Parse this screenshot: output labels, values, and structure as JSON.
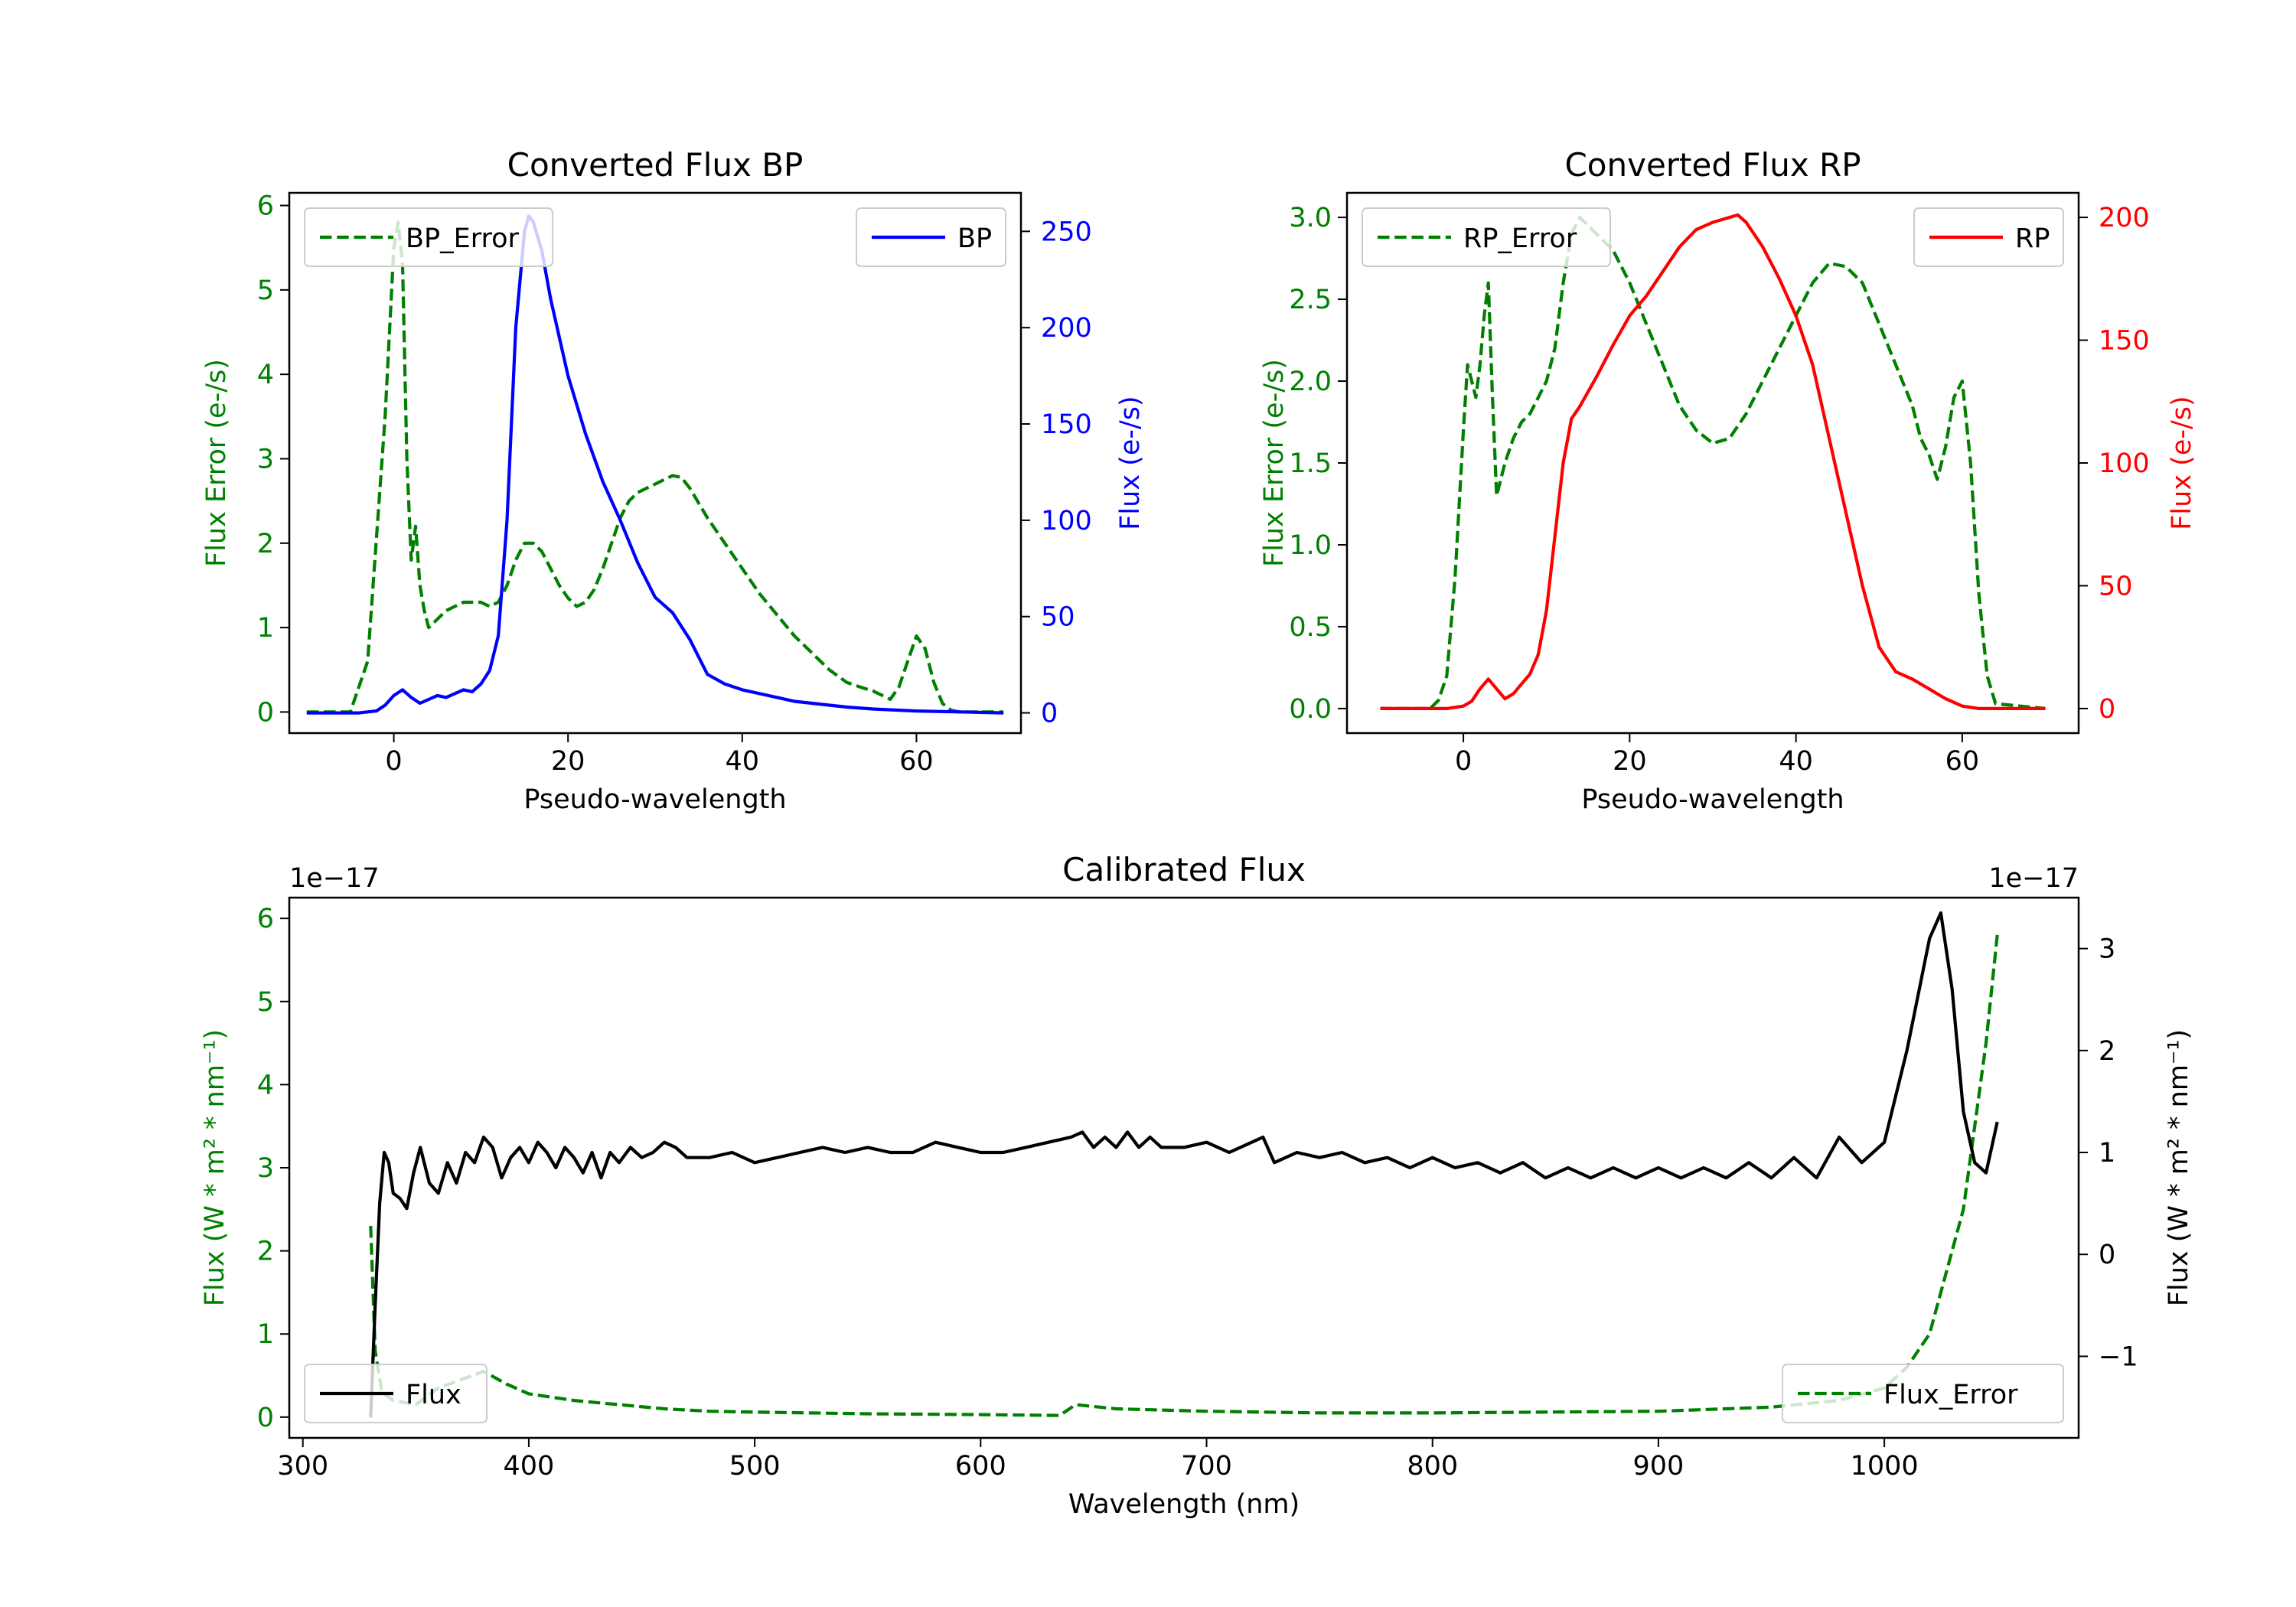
{
  "chart_data": [
    {
      "id": "bp",
      "type": "line",
      "title": "Converted Flux BP",
      "xlabel": "Pseudo-wavelength",
      "ylabel_left": "Flux Error (e-/s)",
      "ylabel_right": "Flux (e-/s)",
      "xlim": [
        -12,
        72
      ],
      "ylim_left": [
        -0.25,
        6.15
      ],
      "ylim_right": [
        -10.5,
        270
      ],
      "xticks": [
        0,
        20,
        40,
        60
      ],
      "yticks_left": [
        0,
        1,
        2,
        3,
        4,
        5,
        6
      ],
      "yticks_right": [
        0,
        50,
        100,
        150,
        200,
        250
      ],
      "legend_left": {
        "label": "BP_Error",
        "placement": "upper left"
      },
      "legend_right": {
        "label": "BP",
        "placement": "upper right"
      },
      "series": [
        {
          "name": "BP_Error",
          "axis": "left",
          "color": "#008000",
          "dash": true,
          "x": [
            -10,
            -5,
            -3,
            -1,
            0,
            0.5,
            1,
            1.5,
            2,
            2.5,
            3,
            3.5,
            4,
            5,
            6,
            7,
            8,
            9,
            10,
            11,
            12,
            13,
            14,
            15,
            16,
            17,
            18,
            19,
            20,
            21,
            22,
            23,
            24,
            25,
            26,
            27,
            28,
            30,
            32,
            33,
            34,
            36,
            38,
            40,
            42,
            44,
            46,
            48,
            50,
            52,
            54,
            55,
            56,
            57,
            58,
            59,
            60,
            61,
            62,
            63,
            64,
            65,
            70
          ],
          "values": [
            0,
            0,
            0.6,
            3.5,
            5.5,
            5.8,
            5.3,
            3.0,
            1.8,
            2.2,
            1.5,
            1.2,
            1.0,
            1.1,
            1.2,
            1.25,
            1.3,
            1.3,
            1.3,
            1.25,
            1.3,
            1.5,
            1.8,
            2.0,
            2.0,
            1.9,
            1.7,
            1.5,
            1.35,
            1.25,
            1.3,
            1.45,
            1.7,
            2.0,
            2.3,
            2.5,
            2.6,
            2.7,
            2.8,
            2.78,
            2.65,
            2.3,
            2.0,
            1.7,
            1.4,
            1.15,
            0.9,
            0.7,
            0.5,
            0.35,
            0.28,
            0.25,
            0.2,
            0.15,
            0.3,
            0.6,
            0.9,
            0.75,
            0.35,
            0.1,
            0.02,
            0,
            0
          ]
        },
        {
          "name": "BP",
          "axis": "right",
          "color": "#0000ff",
          "dash": false,
          "x": [
            -10,
            -4,
            -2,
            -1,
            0,
            1,
            2,
            3,
            4,
            5,
            6,
            7,
            8,
            9,
            10,
            11,
            12,
            13,
            14,
            15,
            15.5,
            16,
            17,
            18,
            20,
            22,
            24,
            26,
            28,
            30,
            32,
            34,
            36,
            38,
            40,
            42,
            44,
            46,
            48,
            50,
            52,
            55,
            60,
            65,
            70
          ],
          "values": [
            0,
            0,
            1,
            4,
            9,
            12,
            8,
            5,
            7,
            9,
            8,
            10,
            12,
            11,
            15,
            22,
            40,
            100,
            200,
            250,
            258,
            255,
            240,
            215,
            175,
            145,
            120,
            100,
            78,
            60,
            52,
            38,
            20,
            15,
            12,
            10,
            8,
            6,
            5,
            4,
            3,
            2,
            1,
            0.5,
            0
          ]
        }
      ]
    },
    {
      "id": "rp",
      "type": "line",
      "title": "Converted Flux RP",
      "xlabel": "Pseudo-wavelength",
      "ylabel_left": "Flux Error (e-/s)",
      "ylabel_right": "Flux (e-/s)",
      "xlim": [
        -14,
        74
      ],
      "ylim_left": [
        -0.15,
        3.15
      ],
      "ylim_right": [
        -10,
        210
      ],
      "xticks": [
        0,
        20,
        40,
        60
      ],
      "yticks_left": [
        0.0,
        0.5,
        1.0,
        1.5,
        2.0,
        2.5,
        3.0
      ],
      "yticks_right": [
        0,
        50,
        100,
        150,
        200
      ],
      "legend_left": {
        "label": "RP_Error",
        "placement": "upper left"
      },
      "legend_right": {
        "label": "RP",
        "placement": "upper right"
      },
      "series": [
        {
          "name": "RP_Error",
          "axis": "left",
          "color": "#008000",
          "dash": true,
          "x": [
            -10,
            -4,
            -3,
            -2,
            -1,
            0,
            0.5,
            1,
            1.5,
            2,
            2.5,
            3,
            3.5,
            4,
            5,
            6,
            7,
            8,
            9,
            10,
            11,
            12,
            13,
            14,
            15,
            16,
            17,
            18,
            20,
            22,
            24,
            26,
            28,
            30,
            32,
            34,
            36,
            38,
            40,
            42,
            44,
            46,
            48,
            50,
            52,
            54,
            55,
            56,
            57,
            58,
            59,
            60,
            61,
            62,
            63,
            64,
            70
          ],
          "values": [
            0,
            0,
            0.05,
            0.2,
            0.8,
            1.7,
            2.1,
            2.0,
            1.9,
            2.1,
            2.4,
            2.6,
            1.9,
            1.3,
            1.5,
            1.65,
            1.75,
            1.8,
            1.9,
            2.0,
            2.2,
            2.6,
            2.9,
            3.0,
            2.95,
            2.9,
            2.85,
            2.8,
            2.6,
            2.35,
            2.1,
            1.85,
            1.7,
            1.62,
            1.65,
            1.8,
            2.0,
            2.2,
            2.4,
            2.6,
            2.72,
            2.7,
            2.6,
            2.35,
            2.1,
            1.85,
            1.65,
            1.55,
            1.4,
            1.6,
            1.9,
            2.0,
            1.5,
            0.7,
            0.2,
            0.03,
            0
          ]
        },
        {
          "name": "RP",
          "axis": "right",
          "color": "#ff0000",
          "dash": false,
          "x": [
            -10,
            -2,
            0,
            1,
            2,
            3,
            4,
            5,
            6,
            7,
            8,
            9,
            10,
            11,
            12,
            13,
            14,
            16,
            18,
            20,
            22,
            24,
            26,
            28,
            30,
            32,
            33,
            34,
            36,
            38,
            40,
            42,
            44,
            46,
            48,
            50,
            52,
            54,
            56,
            58,
            60,
            62,
            65,
            70
          ],
          "values": [
            0,
            0,
            1,
            3,
            8,
            12,
            8,
            4,
            6,
            10,
            14,
            22,
            40,
            70,
            100,
            118,
            123,
            135,
            148,
            160,
            168,
            178,
            188,
            195,
            198,
            200,
            201,
            198,
            188,
            175,
            160,
            140,
            110,
            80,
            50,
            25,
            15,
            12,
            8,
            4,
            1,
            0,
            0,
            0
          ]
        }
      ]
    },
    {
      "id": "cal",
      "type": "line",
      "title": "Calibrated Flux",
      "xlabel": "Wavelength (nm)",
      "ylabel_left": "Flux (W * m² * nm⁻¹)",
      "ylabel_right": "Flux (W * m² * nm⁻¹)",
      "offset_left": "1e−17",
      "offset_right": "1e−17",
      "xlim": [
        294,
        1086
      ],
      "ylim_left": [
        -0.25,
        6.25
      ],
      "ylim_right": [
        -1.8,
        3.5
      ],
      "xticks": [
        300,
        400,
        500,
        600,
        700,
        800,
        900,
        1000
      ],
      "yticks_left": [
        0,
        1,
        2,
        3,
        4,
        5,
        6
      ],
      "yticks_right": [
        -1,
        0,
        1,
        2,
        3
      ],
      "legend_left": {
        "label": "Flux",
        "placement": "lower left"
      },
      "legend_right": {
        "label": "Flux_Error",
        "placement": "lower right"
      },
      "series": [
        {
          "name": "Flux_Error",
          "axis": "left",
          "color": "#008000",
          "dash": true,
          "x": [
            330,
            332,
            335,
            340,
            350,
            360,
            370,
            380,
            390,
            400,
            420,
            440,
            460,
            480,
            500,
            550,
            600,
            635,
            642,
            660,
            700,
            750,
            800,
            850,
            900,
            950,
            980,
            1000,
            1010,
            1020,
            1025,
            1030,
            1035,
            1040,
            1045,
            1050
          ],
          "values": [
            2.3,
            0.8,
            0.3,
            0.2,
            0.15,
            0.35,
            0.45,
            0.55,
            0.4,
            0.28,
            0.2,
            0.15,
            0.1,
            0.07,
            0.06,
            0.04,
            0.03,
            0.02,
            0.15,
            0.1,
            0.07,
            0.05,
            0.05,
            0.06,
            0.07,
            0.12,
            0.2,
            0.35,
            0.6,
            1.0,
            1.5,
            2.0,
            2.5,
            3.5,
            4.5,
            5.8
          ]
        },
        {
          "name": "Flux",
          "axis": "right",
          "color": "#000000",
          "dash": false,
          "x": [
            330,
            332,
            334,
            336,
            338,
            340,
            343,
            346,
            349,
            352,
            356,
            360,
            364,
            368,
            372,
            376,
            380,
            384,
            388,
            392,
            396,
            400,
            404,
            408,
            412,
            416,
            420,
            424,
            428,
            432,
            436,
            440,
            445,
            450,
            455,
            460,
            465,
            470,
            480,
            490,
            500,
            510,
            520,
            530,
            540,
            550,
            560,
            570,
            580,
            590,
            600,
            610,
            620,
            630,
            640,
            645,
            650,
            655,
            660,
            665,
            670,
            675,
            680,
            690,
            700,
            710,
            720,
            725,
            730,
            740,
            750,
            760,
            770,
            780,
            790,
            800,
            810,
            820,
            830,
            840,
            850,
            860,
            870,
            880,
            890,
            900,
            910,
            920,
            930,
            940,
            950,
            960,
            970,
            980,
            990,
            1000,
            1010,
            1020,
            1025,
            1030,
            1035,
            1040,
            1045,
            1050
          ],
          "values": [
            -1.6,
            -0.5,
            0.5,
            1.0,
            0.9,
            0.6,
            0.55,
            0.45,
            0.8,
            1.05,
            0.7,
            0.6,
            0.9,
            0.7,
            1.0,
            0.9,
            1.15,
            1.05,
            0.75,
            0.95,
            1.05,
            0.9,
            1.1,
            1.0,
            0.85,
            1.05,
            0.95,
            0.8,
            1.0,
            0.75,
            1.0,
            0.9,
            1.05,
            0.95,
            1.0,
            1.1,
            1.05,
            0.95,
            0.95,
            1.0,
            0.9,
            0.95,
            1.0,
            1.05,
            1.0,
            1.05,
            1.0,
            1.0,
            1.1,
            1.05,
            1.0,
            1.0,
            1.05,
            1.1,
            1.15,
            1.2,
            1.05,
            1.15,
            1.05,
            1.2,
            1.05,
            1.15,
            1.05,
            1.05,
            1.1,
            1.0,
            1.1,
            1.15,
            0.9,
            1.0,
            0.95,
            1.0,
            0.9,
            0.95,
            0.85,
            0.95,
            0.85,
            0.9,
            0.8,
            0.9,
            0.75,
            0.85,
            0.75,
            0.85,
            0.75,
            0.85,
            0.75,
            0.85,
            0.75,
            0.9,
            0.75,
            0.95,
            0.75,
            1.15,
            0.9,
            1.1,
            2.0,
            3.1,
            3.35,
            2.6,
            1.4,
            0.9,
            0.8,
            1.3
          ]
        }
      ]
    }
  ]
}
